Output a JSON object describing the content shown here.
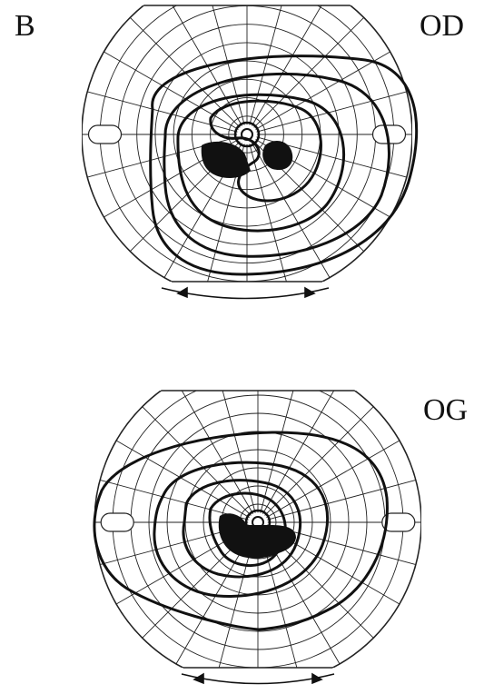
{
  "figure": {
    "panel_label": "B",
    "eyes": [
      {
        "id": "od",
        "label": "OD"
      },
      {
        "id": "og",
        "label": "OG"
      }
    ]
  }
}
